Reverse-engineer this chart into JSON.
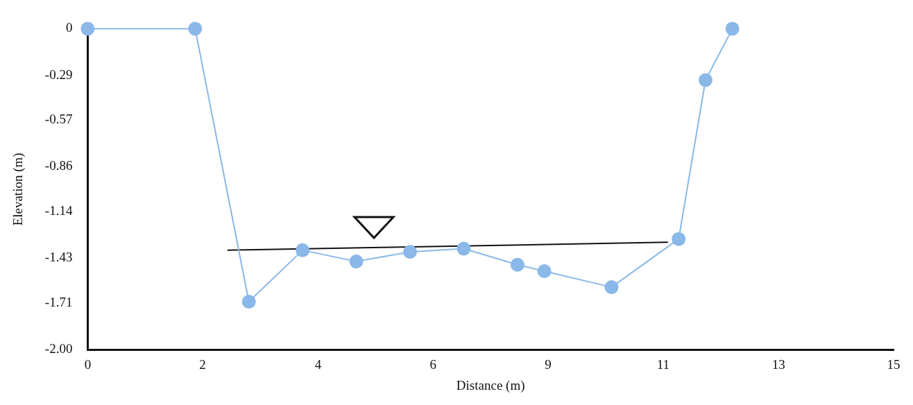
{
  "chart_data": {
    "type": "line",
    "xlabel": "Distance (m)",
    "ylabel": "Elevation (m)",
    "xlim": [
      0,
      15
    ],
    "ylim": [
      -2.0,
      0
    ],
    "xticks": [
      0,
      {
        "value": 2.14,
        "label": "2"
      },
      {
        "value": 4.29,
        "label": "4"
      },
      {
        "value": 6.43,
        "label": "6"
      },
      {
        "value": 8.57,
        "label": "9"
      },
      {
        "value": 10.71,
        "label": "11"
      },
      {
        "value": 12.86,
        "label": "13"
      },
      15
    ],
    "yticks": [
      {
        "value": -2.0,
        "label": "-2.00"
      },
      -1.71,
      -1.43,
      -1.14,
      -0.86,
      -0.57,
      -0.29,
      0
    ],
    "grid": false,
    "legend": false,
    "marker": "circle",
    "line_style": "solid",
    "series": [
      {
        "color": "#8ab8e8",
        "x": [
          0,
          2.0,
          3.0,
          4.0,
          5.0,
          6.0,
          7.0,
          8.0,
          8.5,
          9.75,
          11.0,
          11.5,
          12.0
        ],
        "values": [
          0,
          0,
          -1.7,
          -1.38,
          -1.45,
          -1.39,
          -1.37,
          -1.47,
          -1.51,
          -1.61,
          -1.31,
          -0.32,
          0
        ]
      },
      {
        "type": "line",
        "color": "#111111",
        "marker": "none",
        "x": [
          2.6,
          10.8
        ],
        "values": [
          -1.38,
          -1.33
        ]
      }
    ]
  }
}
